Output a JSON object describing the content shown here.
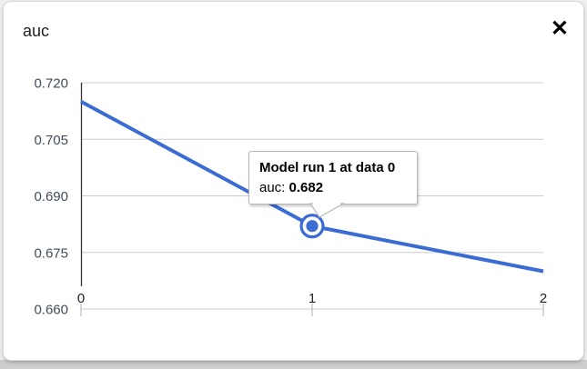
{
  "dialog": {
    "title": "auc",
    "close_icon": "✕"
  },
  "tooltip": {
    "title": "Model run 1 at data 0",
    "metric_label": "auc:",
    "metric_value": "0.682"
  },
  "chart_data": {
    "type": "line",
    "title": "auc",
    "x": [
      0,
      1,
      2
    ],
    "series": [
      {
        "name": "Model run 1",
        "values": [
          0.715,
          0.682,
          0.67
        ]
      }
    ],
    "xlim": [
      0,
      2
    ],
    "ylim": [
      0.66,
      0.72
    ],
    "xticks": [
      {
        "value": 0,
        "label": "0"
      },
      {
        "value": 1,
        "label": "1"
      },
      {
        "value": 2,
        "label": "2"
      }
    ],
    "yticks": [
      {
        "value": 0.66,
        "label": "0.660"
      },
      {
        "value": 0.675,
        "label": "0.675"
      },
      {
        "value": 0.69,
        "label": "0.690"
      },
      {
        "value": 0.705,
        "label": "0.705"
      },
      {
        "value": 0.72,
        "label": "0.720"
      }
    ],
    "highlight": {
      "series": 0,
      "index": 1,
      "x": 1,
      "y": 0.682
    },
    "legend": "none",
    "grid": true,
    "colors": {
      "line": "#3b6cd4",
      "grid": "#cccccc",
      "axis": "#333333",
      "tick": "#b0b0b0",
      "ylabel": "#424c5c",
      "xlabel": "#1f1f1f"
    }
  }
}
